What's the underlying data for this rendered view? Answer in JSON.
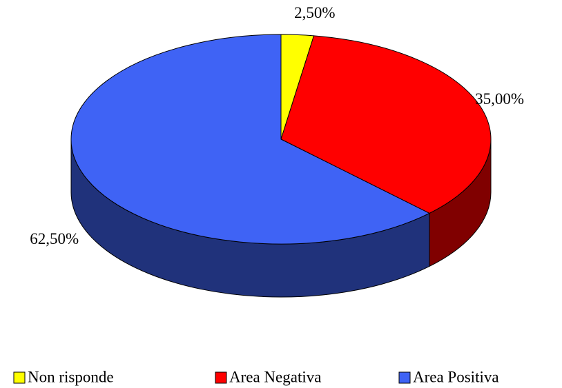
{
  "chart_data": {
    "type": "pie",
    "categories": [
      "Non risponde",
      "Area Negativa",
      "Area Positiva"
    ],
    "values": [
      2.5,
      35,
      62.5
    ],
    "value_labels": [
      "2,50%",
      "35,00%",
      "62,50%"
    ],
    "colors": [
      "#ffff00",
      "#ff0000",
      "#3f63f5"
    ],
    "legend": "bottom"
  }
}
